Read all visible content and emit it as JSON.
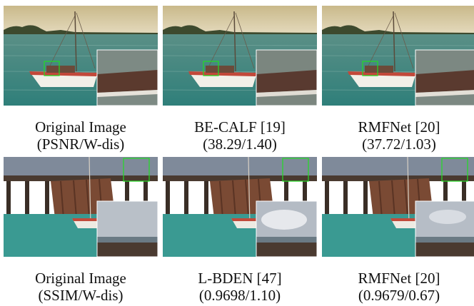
{
  "figure": {
    "top_row": {
      "scene": "sailboat",
      "panels": [
        {
          "method": "Original Image",
          "metric": "(PSNR/W-dis)"
        },
        {
          "method": "BE-CALF [19]",
          "metric": "(38.29/1.40)"
        },
        {
          "method": "RMFNet [20]",
          "metric": "(37.72/1.03)"
        }
      ]
    },
    "bottom_row": {
      "scene": "pier",
      "panels": [
        {
          "method": "Original Image",
          "metric": "(SSIM/W-dis)"
        },
        {
          "method": "L-BDEN [47]",
          "metric": "(0.9698/1.10)"
        },
        {
          "method": "RMFNet [20]",
          "metric": "(0.9679/0.67)"
        }
      ]
    },
    "colors": {
      "roi_box": "#22dd22",
      "sea": "#3f8f86",
      "sky": "#c8b98a",
      "sky_pier": "#7f8a9a"
    }
  }
}
